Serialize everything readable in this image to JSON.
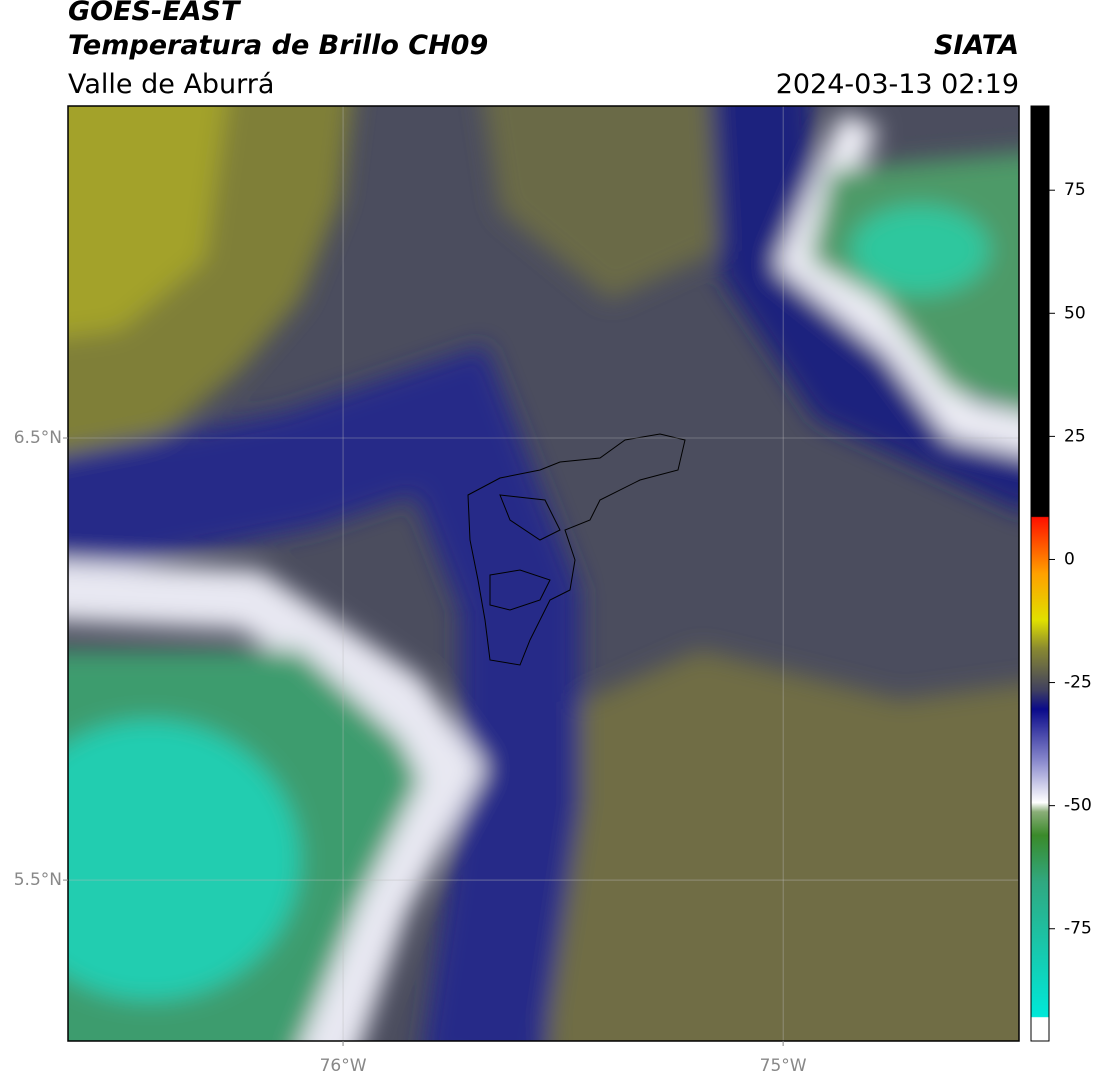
{
  "header": {
    "line1": "GOES-EAST",
    "line2": "Temperatura de Brillo CH09",
    "subtitle": "Valle de Aburrá",
    "source": "SIATA",
    "datetime": "2024-03-13 02:19"
  },
  "map": {
    "lon_lim": [
      -76.625,
      -74.464
    ],
    "lat_lim": [
      5.136,
      7.251
    ],
    "lat_ticks": [
      {
        "value": 6.5,
        "label": "6.5°N"
      },
      {
        "value": 5.5,
        "label": "5.5°N"
      }
    ],
    "lon_ticks": [
      {
        "value": -76,
        "label": "76°W"
      },
      {
        "value": -75,
        "label": "75°W"
      }
    ]
  },
  "colorbar": {
    "lim": [
      -97.8,
      92.1
    ],
    "ticks": [
      75,
      50,
      25,
      0,
      -25,
      -50,
      -75
    ]
  }
}
